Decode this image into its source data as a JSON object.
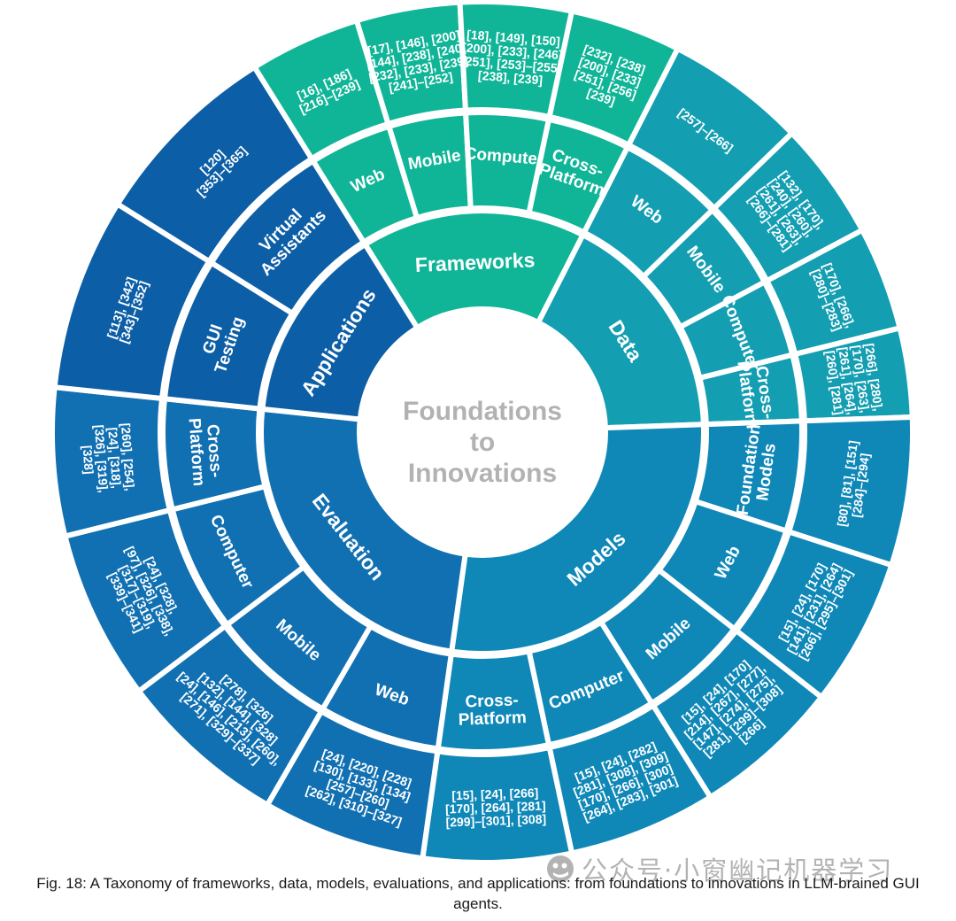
{
  "figure": {
    "caption": "Fig. 18: A Taxonomy of frameworks, data, models, evaluations, and applications: from foundations to innovations in LLM-brained GUI agents."
  },
  "watermark": {
    "icon": "wechat-icon",
    "text": "公众号·小窗幽记机器学习"
  },
  "chart_data": {
    "type": "sunburst",
    "title": "Foundations to Innovations",
    "center_label_lines": [
      "Foundations",
      "to",
      "Innovations"
    ],
    "center_text_color": "#b2b2b2",
    "ring_levels": [
      "category",
      "platform",
      "references"
    ],
    "categories": [
      {
        "name": "Frameworks",
        "color": "#10b598",
        "start": -32,
        "end": 27,
        "children": [
          {
            "name": "Web",
            "label_lines": [
              "Web"
            ],
            "start": -32,
            "end": -17,
            "ref_lines": [
              "[16], [186]",
              "[216]–[239]"
            ]
          },
          {
            "name": "Mobile",
            "label_lines": [
              "Mobile"
            ],
            "start": -17,
            "end": -3,
            "ref_lines": [
              "[17], [146], [200]",
              "[144], [238], [240]",
              "[232], [233], [239]",
              "[241]–[252]"
            ]
          },
          {
            "name": "Computer",
            "label_lines": [
              "Computer"
            ],
            "start": -3,
            "end": 12,
            "ref_lines": [
              "[18], [149], [150]",
              "[200], [233], [246]",
              "[251], [253]–[255]",
              "[238], [239]"
            ]
          },
          {
            "name": "Cross-Platform",
            "label_lines": [
              "Cross-",
              "Platform"
            ],
            "start": 12,
            "end": 27,
            "ref_lines": [
              "[232], [238]",
              "[200], [233]",
              "[251], [256]",
              "[239]"
            ]
          }
        ]
      },
      {
        "name": "Data",
        "color": "#139eb2",
        "start": 27,
        "end": 88,
        "children": [
          {
            "name": "Web",
            "label_lines": [
              "Web"
            ],
            "start": 27,
            "end": 46,
            "ref_lines": [
              "[257]–[266]"
            ]
          },
          {
            "name": "Mobile",
            "label_lines": [
              "Mobile"
            ],
            "start": 46,
            "end": 62,
            "ref_lines": [
              "[132], [170],",
              "[240], [260],",
              "[261], [263],",
              "[266]–[281]"
            ]
          },
          {
            "name": "Computer",
            "label_lines": [
              "Computer"
            ],
            "start": 62,
            "end": 76,
            "ref_lines": [
              "[170], [266],",
              "[280]–[283]"
            ]
          },
          {
            "name": "Cross-Platform",
            "label_lines": [
              "Cross-",
              "Platform"
            ],
            "start": 76,
            "end": 88,
            "ref_lines": [
              "[266], [280],",
              "[170], [263],",
              "[261], [264],",
              "[260], [281]"
            ]
          }
        ]
      },
      {
        "name": "Models",
        "color": "#0f88b8",
        "start": 88,
        "end": 188,
        "children": [
          {
            "name": "Foundation Models",
            "label_lines": [
              "Foundation",
              "Models"
            ],
            "start": 88,
            "end": 108,
            "ref_lines": [
              "[80], [81], [151]",
              "[284]–[294]"
            ]
          },
          {
            "name": "Web",
            "label_lines": [
              "Web"
            ],
            "start": 108,
            "end": 128,
            "ref_lines": [
              "[15], [24], [170]",
              "[141], [231], [264]",
              "[266], [295]–[301]"
            ]
          },
          {
            "name": "Mobile",
            "label_lines": [
              "Mobile"
            ],
            "start": 128,
            "end": 148,
            "ref_lines": [
              "[15], [24], [170]",
              "[214], [267], [277],",
              "[147], [274], [275],",
              "[281], [299]–[308]",
              "[266]"
            ]
          },
          {
            "name": "Computer",
            "label_lines": [
              "Computer"
            ],
            "start": 148,
            "end": 168,
            "ref_lines": [
              "[15], [24], [282]",
              "[281], [308], [309]",
              "[170], [266], [300]",
              "[264], [283], [301]"
            ]
          },
          {
            "name": "Cross-Platform",
            "label_lines": [
              "Cross-",
              "Platform"
            ],
            "start": 168,
            "end": 188,
            "ref_lines": [
              "[15], [24], [266]",
              "[170], [264], [281]",
              "[299]–[301], [308]"
            ]
          }
        ]
      },
      {
        "name": "Evaluation",
        "color": "#1170b2",
        "start": 188,
        "end": 276,
        "children": [
          {
            "name": "Web",
            "label_lines": [
              "Web"
            ],
            "start": 188,
            "end": 210,
            "ref_lines": [
              "[24], [220], [228]",
              "[130], [133], [134]",
              "[257]–[260]",
              "[262], [310]–[327]"
            ]
          },
          {
            "name": "Mobile",
            "label_lines": [
              "Mobile"
            ],
            "start": 210,
            "end": 233,
            "ref_lines": [
              "[278], [326]",
              "[132], [144], [328]",
              "[24], [146], [213], [260],",
              "[271], [329]–[337]"
            ]
          },
          {
            "name": "Computer",
            "label_lines": [
              "Computer"
            ],
            "start": 233,
            "end": 256,
            "ref_lines": [
              "[24], [328],",
              "[97], [326], [338],",
              "[317]–[319],",
              "[339]–[341]"
            ]
          },
          {
            "name": "Cross-Platform",
            "label_lines": [
              "Cross-",
              "Platform"
            ],
            "start": 256,
            "end": 276,
            "ref_lines": [
              "[260], [254],",
              "[24], [318],",
              "[326], [319],",
              "[328]"
            ]
          }
        ]
      },
      {
        "name": "Applications",
        "color": "#0c5ea6",
        "start": 276,
        "end": 328,
        "children": [
          {
            "name": "GUI Testing",
            "label_lines": [
              "GUI",
              "Testing"
            ],
            "start": 276,
            "end": 302,
            "ref_lines": [
              "[113], [342]",
              "[343]–[352]"
            ]
          },
          {
            "name": "Virtual Assistants",
            "label_lines": [
              "Virtual",
              "Assistants"
            ],
            "start": 302,
            "end": 328,
            "ref_lines": [
              "[120]",
              "[353]–[365]"
            ]
          }
        ]
      }
    ]
  }
}
